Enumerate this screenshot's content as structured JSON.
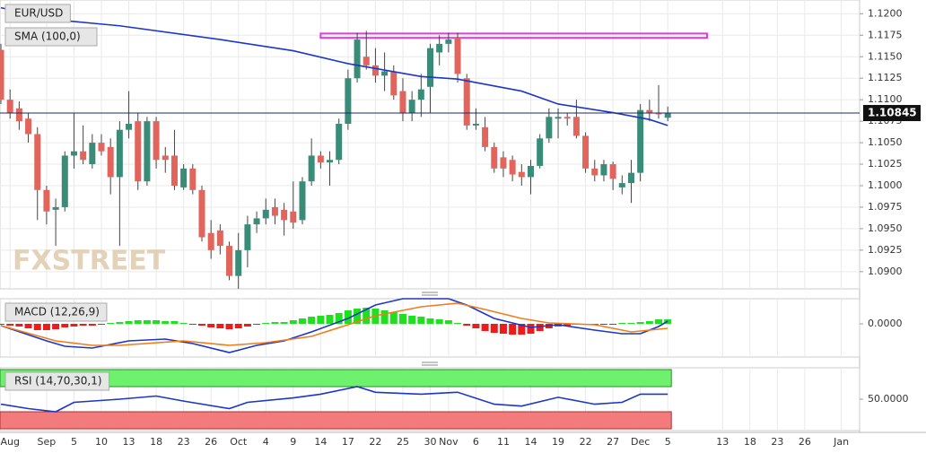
{
  "chart_data": [
    {
      "type": "candlestick",
      "title": "EUR/USD",
      "open": [
        1.1158,
        1.11,
        1.109,
        1.1078,
        1.106,
        1.0995,
        1.0972,
        1.0975,
        1.1035,
        1.104,
        1.1025,
        1.105,
        1.1045,
        1.101,
        1.1065,
        1.1075,
        1.1005,
        1.1075,
        1.1035,
        1.1035,
        1.0998,
        1.102,
        1.0995,
        1.0945,
        1.0948,
        1.093,
        1.0895,
        1.0925,
        1.0955,
        1.0962,
        1.0975,
        1.0972,
        1.097,
        1.096,
        1.1005,
        1.1035,
        1.1027,
        1.103,
        1.1072,
        1.1125,
        1.115,
        1.114,
        1.1128,
        1.1133,
        1.111,
        1.1085,
        1.11,
        1.1115,
        1.1155,
        1.1165,
        1.1172,
        1.1125,
        1.107,
        1.1068,
        1.1045,
        1.1033,
        1.103,
        1.1016,
        1.101,
        1.1023,
        1.1055,
        1.1078,
        1.108,
        1.108,
        1.1058,
        1.102,
        1.1012,
        1.1025,
        1.0998,
        1.1003,
        1.1015,
        1.1088,
        1.1085,
        1.1079
      ],
      "high": [
        1.1165,
        1.1112,
        1.1098,
        1.1085,
        1.1068,
        1.1,
        1.0985,
        1.104,
        1.1085,
        1.107,
        1.106,
        1.106,
        1.1055,
        1.1075,
        1.111,
        1.1085,
        1.108,
        1.108,
        1.1045,
        1.1065,
        1.1025,
        1.1025,
        1.1,
        1.096,
        1.0955,
        1.0935,
        1.0945,
        1.0965,
        1.097,
        1.0985,
        1.0985,
        1.098,
        1.1005,
        1.101,
        1.1055,
        1.104,
        1.104,
        1.1078,
        1.1135,
        1.1178,
        1.118,
        1.116,
        1.1155,
        1.114,
        1.1125,
        1.111,
        1.113,
        1.1165,
        1.1175,
        1.1178,
        1.1178,
        1.113,
        1.109,
        1.108,
        1.105,
        1.104,
        1.1035,
        1.1025,
        1.103,
        1.106,
        1.109,
        1.109,
        1.1085,
        1.11,
        1.1062,
        1.103,
        1.103,
        1.1028,
        1.1012,
        1.103,
        1.1095,
        1.11,
        1.1117,
        1.1092
      ],
      "low": [
        1.1095,
        1.1078,
        1.1065,
        1.105,
        1.096,
        1.0955,
        1.093,
        1.097,
        1.102,
        1.1025,
        1.102,
        1.1035,
        1.099,
        1.093,
        1.1055,
        1.0995,
        1.1,
        1.102,
        1.1015,
        1.0995,
        1.0995,
        1.099,
        1.0935,
        1.0915,
        1.092,
        1.089,
        1.088,
        1.0905,
        1.0945,
        1.0955,
        1.0955,
        1.0942,
        1.095,
        1.0955,
        1.1,
        1.102,
        1.1,
        1.1025,
        1.1065,
        1.112,
        1.1135,
        1.112,
        1.111,
        1.11,
        1.1075,
        1.1075,
        1.108,
        1.1085,
        1.114,
        1.1155,
        1.112,
        1.1065,
        1.1065,
        1.104,
        1.1015,
        1.101,
        1.1005,
        1.1,
        1.099,
        1.102,
        1.105,
        1.1055,
        1.107,
        1.1055,
        1.1015,
        1.1005,
        1.1005,
        1.0995,
        1.099,
        1.098,
        1.1005,
        1.1075,
        1.1078,
        1.1075
      ],
      "close": [
        1.11,
        1.1085,
        1.1075,
        1.106,
        1.0995,
        1.097,
        1.0975,
        1.1035,
        1.104,
        1.103,
        1.105,
        1.104,
        1.101,
        1.1065,
        1.1072,
        1.1005,
        1.1075,
        1.103,
        1.103,
        1.1,
        1.102,
        1.0995,
        1.094,
        1.0925,
        1.093,
        1.0895,
        1.0925,
        1.0955,
        1.0962,
        1.0972,
        1.0965,
        1.096,
        1.0957,
        1.1005,
        1.1035,
        1.1027,
        1.103,
        1.1072,
        1.1125,
        1.117,
        1.114,
        1.1128,
        1.1133,
        1.1105,
        1.1085,
        1.11,
        1.1112,
        1.116,
        1.1165,
        1.117,
        1.113,
        1.107,
        1.1072,
        1.1045,
        1.102,
        1.102,
        1.1013,
        1.101,
        1.1023,
        1.1055,
        1.108,
        1.108,
        1.1078,
        1.1058,
        1.102,
        1.1012,
        1.1025,
        1.1008,
        1.1003,
        1.1015,
        1.1088,
        1.1085,
        1.1083,
        1.1085
      ],
      "up_color": "#3a8c78",
      "down_color": "#e1655c",
      "wick_color": "#444444",
      "xlim": [
        -0.1,
        94
      ],
      "ylim": [
        1.088,
        1.1216
      ],
      "xticks": [
        {
          "value": 1,
          "label": "Aug"
        },
        {
          "value": 5,
          "label": "Sep"
        },
        {
          "value": 8,
          "label": "5"
        },
        {
          "value": 11,
          "label": "10"
        },
        {
          "value": 14,
          "label": "13"
        },
        {
          "value": 17,
          "label": "18"
        },
        {
          "value": 20,
          "label": "23"
        },
        {
          "value": 23,
          "label": "26"
        },
        {
          "value": 26,
          "label": "Oct"
        },
        {
          "value": 29,
          "label": "4"
        },
        {
          "value": 32,
          "label": "9"
        },
        {
          "value": 35,
          "label": "14"
        },
        {
          "value": 38,
          "label": "17"
        },
        {
          "value": 41,
          "label": "22"
        },
        {
          "value": 44,
          "label": "25"
        },
        {
          "value": 47,
          "label": "30"
        },
        {
          "value": 49,
          "label": "Nov"
        },
        {
          "value": 52,
          "label": "6"
        },
        {
          "value": 55,
          "label": "11"
        },
        {
          "value": 58,
          "label": "14"
        },
        {
          "value": 61,
          "label": "19"
        },
        {
          "value": 64,
          "label": "22"
        },
        {
          "value": 67,
          "label": "27"
        },
        {
          "value": 70,
          "label": "Dec"
        },
        {
          "value": 73,
          "label": "5"
        },
        {
          "value": 79,
          "label": "13"
        },
        {
          "value": 82,
          "label": "18"
        },
        {
          "value": 85,
          "label": "23"
        },
        {
          "value": 88,
          "label": "26"
        },
        {
          "value": 92,
          "label": "Jan"
        }
      ],
      "yticks": [
        {
          "value": 1.09,
          "label": "1.0900"
        },
        {
          "value": 1.0925,
          "label": "1.0925"
        },
        {
          "value": 1.095,
          "label": "1.0950"
        },
        {
          "value": 1.0975,
          "label": "1.0975"
        },
        {
          "value": 1.1,
          "label": "1.1000"
        },
        {
          "value": 1.1025,
          "label": "1.1025"
        },
        {
          "value": 1.105,
          "label": "1.1050"
        },
        {
          "value": 1.1075,
          "label": "1.1075"
        },
        {
          "value": 1.11,
          "label": "1.1100"
        },
        {
          "value": 1.1125,
          "label": "1.1125"
        },
        {
          "value": 1.115,
          "label": "1.1150"
        },
        {
          "value": 1.1175,
          "label": "1.1175"
        },
        {
          "value": 1.12,
          "label": "1.1200"
        }
      ],
      "grid": true,
      "overlays": [
        {
          "name": "SMA (100,0)",
          "color": "#1c36c8",
          "x": [
            0,
            6,
            13,
            24,
            32,
            38,
            46,
            50,
            57,
            61,
            67,
            71,
            73
          ],
          "values": [
            1.1207,
            1.1193,
            1.1186,
            1.117,
            1.1157,
            1.1142,
            1.1127,
            1.1124,
            1.111,
            1.1095,
            1.1085,
            1.1077,
            1.107
          ]
        }
      ],
      "zone": {
        "color": "#e23be0",
        "x": [
          35,
          77.3
        ],
        "y": [
          1.1172,
          1.1177
        ]
      },
      "last_price": {
        "value": 1.10845,
        "label": "1.10845"
      },
      "watermark": "FXSTREET"
    },
    {
      "type": "macd",
      "title": "MACD (12,26,9)",
      "histogram": [
        -0.0001,
        -0.0002,
        -0.0003,
        -0.0005,
        -0.0007,
        -0.0007,
        -0.0006,
        -0.0004,
        -0.0003,
        -0.0002,
        -0.0002,
        -0.0001,
        0.0001,
        0.0002,
        0.0003,
        0.0004,
        0.0004,
        0.0004,
        0.0003,
        0.0003,
        0.0001,
        -0.0001,
        -0.0002,
        -0.0004,
        -0.0005,
        -0.0006,
        -0.0005,
        -0.0003,
        -0.0001,
        0.0001,
        0.0002,
        0.0002,
        0.0004,
        0.0006,
        0.0008,
        0.0009,
        0.001,
        0.0012,
        0.0015,
        0.0017,
        0.0018,
        0.0017,
        0.0015,
        0.0013,
        0.0011,
        0.0009,
        0.0008,
        0.0006,
        0.0005,
        0.0004,
        0.0001,
        -0.0002,
        -0.0005,
        -0.0008,
        -0.001,
        -0.0011,
        -0.0012,
        -0.0012,
        -0.0011,
        -0.0008,
        -0.0005,
        -0.0003,
        -0.0002,
        -0.0001,
        -0.0001,
        -0.0001,
        -0.0001,
        -0.0001,
        0.0001,
        0.0001,
        0.0002,
        0.0003,
        0.0005,
        0.0005
      ],
      "up_color": "#1fe01f",
      "down_color": "#ee1b1b",
      "series": [
        {
          "color": "#1c36c8",
          "x": [
            0,
            5,
            7,
            10,
            14,
            18,
            21,
            25,
            28,
            31,
            34,
            38,
            41,
            44,
            49,
            51,
            54,
            58,
            61,
            65,
            68,
            70,
            72,
            73
          ],
          "values": [
            -0.0002,
            -0.0019,
            -0.0025,
            -0.0027,
            -0.0019,
            -0.0017,
            -0.0022,
            -0.0032,
            -0.0024,
            -0.0019,
            -0.0009,
            0.0006,
            0.0021,
            0.0028,
            0.0028,
            0.0021,
            0.0006,
            -0.0004,
            -0.0001,
            -0.0007,
            -0.0011,
            -0.0011,
            -0.0003,
            0.0003
          ]
        },
        {
          "color": "#ef7d1a",
          "x": [
            0,
            6,
            10,
            13,
            20,
            25,
            29,
            34,
            38,
            41,
            46,
            50,
            53,
            57,
            60,
            65,
            69,
            73
          ],
          "values": [
            -0.0002,
            -0.0019,
            -0.0024,
            -0.0024,
            -0.0019,
            -0.0024,
            -0.0021,
            -0.0014,
            -0.0001,
            0.0009,
            0.0019,
            0.0023,
            0.0016,
            0.0006,
            0.0001,
            -0.0001,
            -0.0009,
            -0.0005
          ]
        }
      ],
      "ylim": [
        -0.0037,
        0.0028
      ],
      "yticks": [
        {
          "value": 0,
          "label": "0.0000"
        }
      ]
    },
    {
      "type": "rsi",
      "title": "RSI (14,70,30,1)",
      "levels": [
        70,
        30
      ],
      "level_colors": [
        "#6ef26e",
        "#f47b7b"
      ],
      "series": [
        {
          "color": "#1c36c8",
          "x": [
            0,
            3,
            6,
            8,
            13,
            17,
            20,
            25,
            27,
            32,
            35,
            39,
            41,
            46,
            50,
            54,
            57,
            61,
            65,
            68,
            70,
            73
          ],
          "values": [
            42,
            35,
            30,
            45,
            50,
            55,
            47,
            35,
            45,
            52,
            58,
            70,
            61,
            58,
            61,
            42,
            39,
            53,
            42,
            45,
            58,
            58
          ]
        }
      ],
      "ylim": [
        0,
        100
      ],
      "yticks": [
        {
          "value": 50,
          "label": "50.0000"
        }
      ]
    }
  ]
}
